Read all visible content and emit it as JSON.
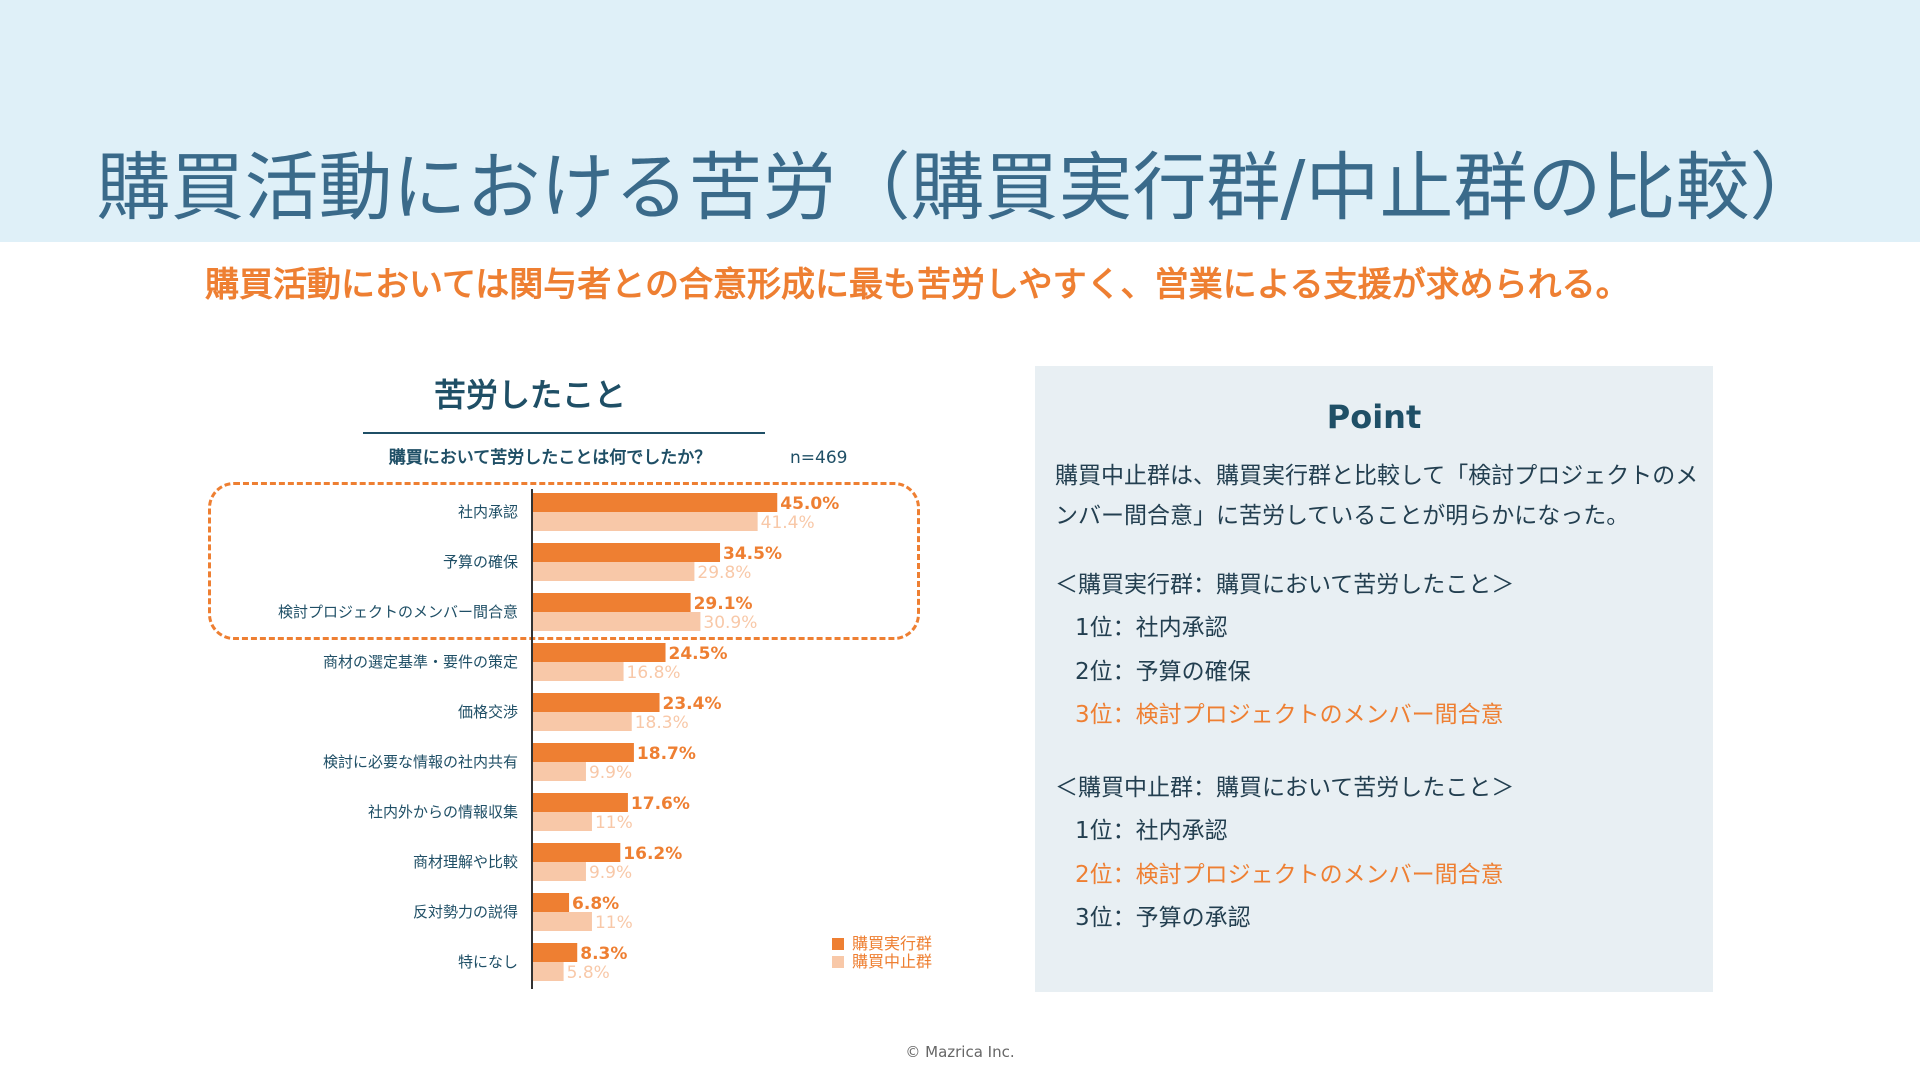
{
  "title": "購買活動における苦労（購買実行群/中止群の比較）",
  "lead": "購買活動においては関与者との合意形成に最も苦労しやすく、営業による支援が求められる。",
  "colors": {
    "series1": "#ee7f32",
    "series2": "#f8c8a8",
    "accent": "#ee7f32",
    "heading": "#1f4f66",
    "header_bg": "#dff0f8"
  },
  "chart_data": {
    "type": "bar",
    "orientation": "horizontal",
    "title": "苦労したこと",
    "subtitle": "購買において苦労したことは何でしたか？",
    "n_label": "n=469",
    "categories": [
      "社内承認",
      "予算の確保",
      "検討プロジェクトのメンバー間合意",
      "商材の選定基準・要件の策定",
      "価格交渉",
      "検討に必要な情報の社内共有",
      "社内外からの情報収集",
      "商材理解や比較",
      "反対勢力の説得",
      "特になし"
    ],
    "series": [
      {
        "name": "購買実行群",
        "values": [
          45.0,
          34.5,
          29.1,
          24.5,
          23.4,
          18.7,
          17.6,
          16.2,
          6.8,
          8.3
        ],
        "labels": [
          "45.0%",
          "34.5%",
          "29.1%",
          "24.5%",
          "23.4%",
          "18.7%",
          "17.6%",
          "16.2%",
          "6.8%",
          "8.3%"
        ]
      },
      {
        "name": "購買中止群",
        "values": [
          41.4,
          29.8,
          30.9,
          16.8,
          18.3,
          9.9,
          11,
          9.9,
          11,
          5.8
        ],
        "labels": [
          "41.4%",
          "29.8%",
          "30.9%",
          "16.8%",
          "18.3%",
          "9.9%",
          "11%",
          "9.9%",
          "11%",
          "5.8%"
        ]
      }
    ],
    "xlim": [
      0,
      50
    ],
    "highlighted_categories": [
      "社内承認",
      "予算の確保",
      "検討プロジェクトのメンバー間合意"
    ],
    "legend": [
      "購買実行群",
      "購買中止群"
    ],
    "legend_position": "bottom-right"
  },
  "point": {
    "title": "Point",
    "description": "購買中止群は、購買実行群と比較して「検討プロジェクトのメンバー間合意」に苦労していることが明らかになった。",
    "group1": {
      "heading": "＜購買実行群：購買において苦労したこと＞",
      "ranks": [
        "1位：社内承認",
        "2位：予算の確保",
        "3位：検討プロジェクトのメンバー間合意"
      ]
    },
    "group2": {
      "heading": "＜購買中止群：購買において苦労したこと＞",
      "ranks": [
        "1位：社内承認",
        "2位：検討プロジェクトのメンバー間合意",
        "3位：予算の承認"
      ]
    }
  },
  "copyright": "© Mazrica Inc."
}
